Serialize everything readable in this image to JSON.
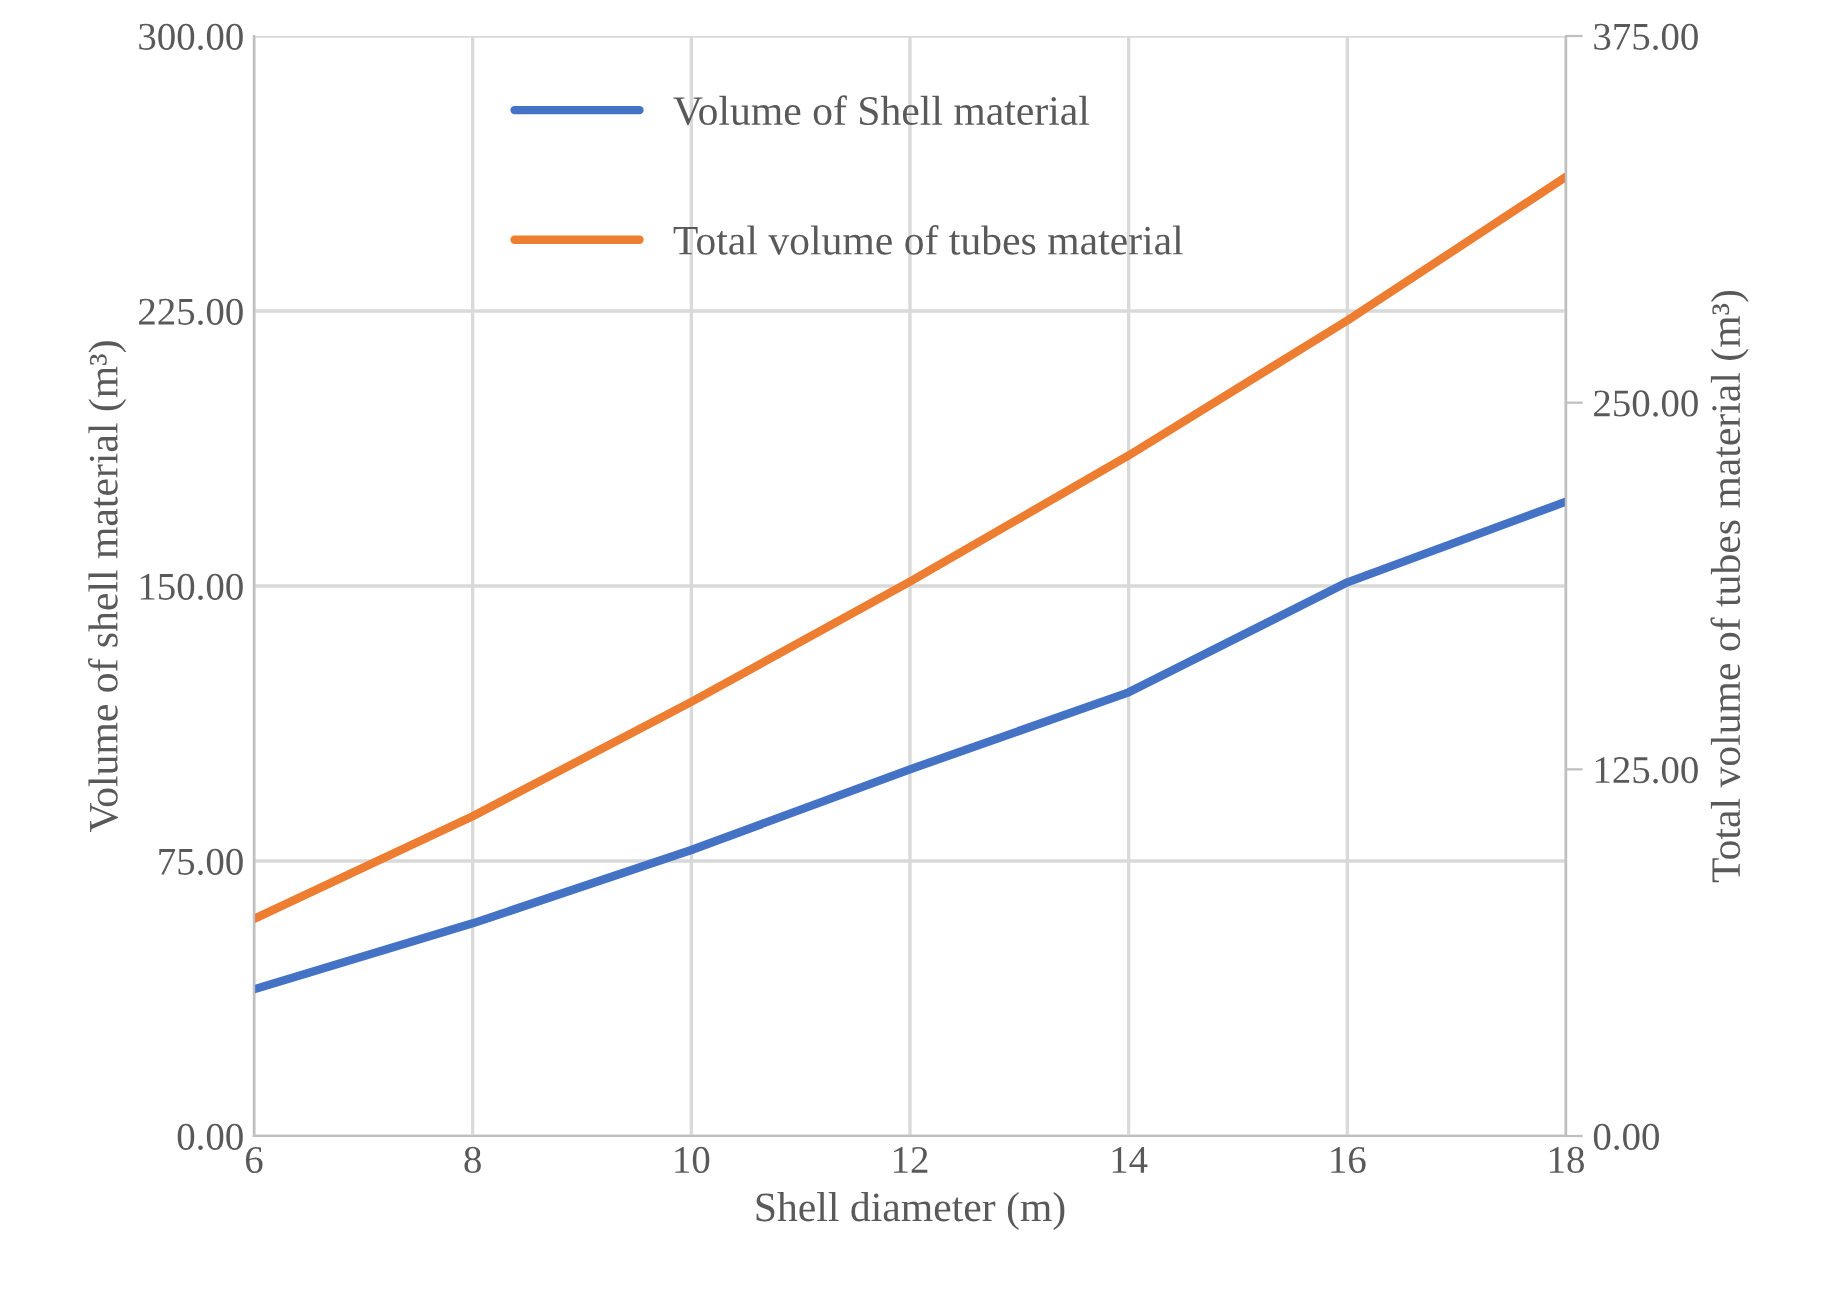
{
  "chart_data": {
    "type": "line",
    "xlabel": "Shell diameter (m)",
    "ylabel": "Volume of shell material (m³)",
    "y2label": "Total volume of tubes material (m³)",
    "x": [
      6,
      8,
      10,
      12,
      14,
      16,
      18
    ],
    "series": [
      {
        "name": "Volume of Shell material",
        "color": "#4472c4",
        "values": [
          40,
          58,
          78,
          100,
          121,
          151,
          173
        ]
      },
      {
        "name": "Total volume of tubes material",
        "color": "#ed7d31",
        "axis": "y2",
        "values": [
          74,
          109,
          148,
          189,
          232,
          278,
          327
        ]
      }
    ],
    "xlim": [
      6,
      18
    ],
    "xticks": [
      6,
      8,
      10,
      12,
      14,
      16,
      18
    ],
    "ylim": [
      0,
      300
    ],
    "yticks": [
      {
        "value": 0,
        "label": "0.00"
      },
      {
        "value": 75,
        "label": "75.00"
      },
      {
        "value": 150,
        "label": "150.00"
      },
      {
        "value": 225,
        "label": "225.00"
      },
      {
        "value": 300,
        "label": "300.00"
      }
    ],
    "y2lim": [
      0,
      375
    ],
    "y2ticks": [
      {
        "value": 0,
        "label": "0.00"
      },
      {
        "value": 125,
        "label": "125.00"
      },
      {
        "value": 250,
        "label": "250.00"
      },
      {
        "value": 375,
        "label": "375.00"
      }
    ],
    "grid": true,
    "legend": "top left",
    "marker": "none",
    "line_style": "solid"
  }
}
